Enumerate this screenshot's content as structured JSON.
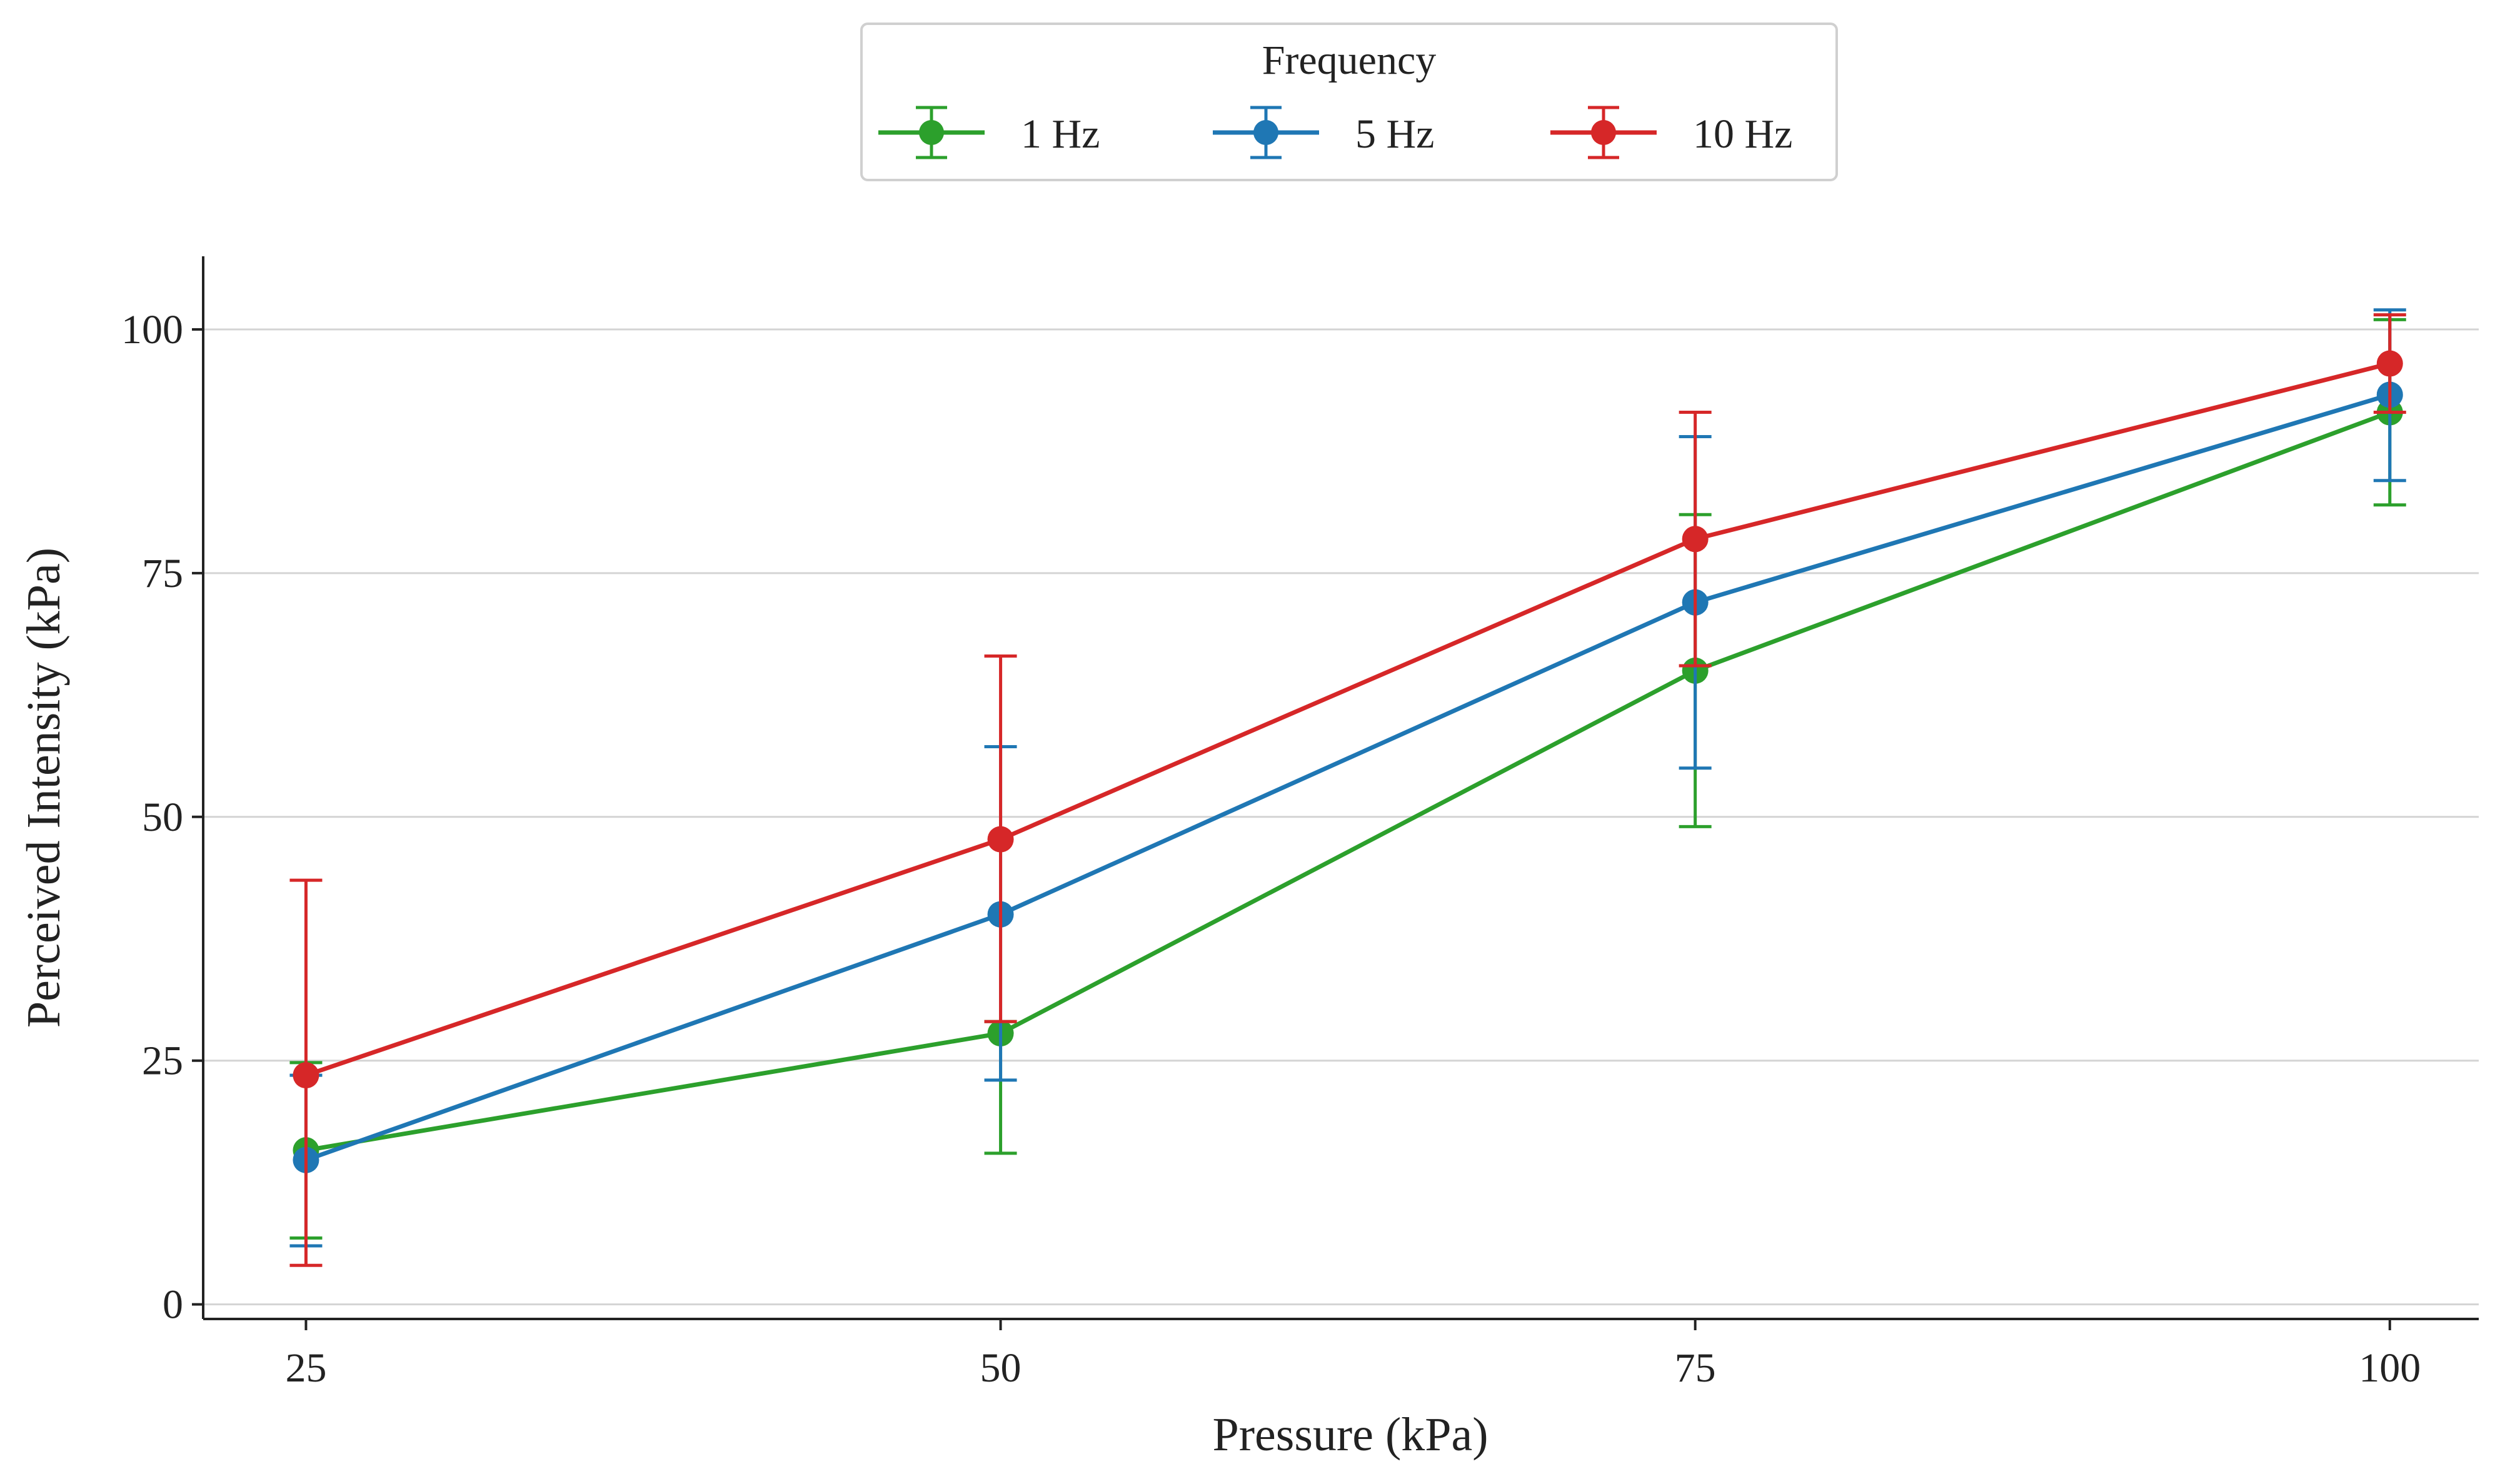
{
  "chart_data": {
    "type": "line",
    "title": "",
    "xlabel": "Pressure (kPa)",
    "ylabel": "Perceived Intensity (kPa)",
    "x": [
      25,
      50,
      75,
      100
    ],
    "x_tick_labels": [
      "25",
      "50",
      "75",
      "100"
    ],
    "y_ticks": [
      0,
      25,
      50,
      75,
      100
    ],
    "y_tick_labels": [
      "0",
      "25",
      "50",
      "75",
      "100"
    ],
    "xlim": [
      21.3,
      103.2
    ],
    "ylim": [
      -1.5,
      107.5
    ],
    "grid": "horizontal",
    "legend": {
      "title": "Frequency",
      "placement": "top-center"
    },
    "series": [
      {
        "name": "1 Hz",
        "color": "#2ca02c",
        "values": [
          15.8,
          27.8,
          65.0,
          91.5
        ],
        "error_low": [
          6.8,
          15.5,
          49.0,
          82.0
        ],
        "error_high": [
          24.8,
          29.0,
          81.0,
          101.0
        ]
      },
      {
        "name": "5 Hz",
        "color": "#1f77b4",
        "values": [
          14.8,
          40.0,
          72.0,
          93.3
        ],
        "error_low": [
          6.0,
          23.0,
          55.0,
          84.5
        ],
        "error_high": [
          23.5,
          57.2,
          89.0,
          102.0
        ]
      },
      {
        "name": "10 Hz",
        "color": "#d62728",
        "values": [
          23.5,
          47.7,
          78.5,
          96.5
        ],
        "error_low": [
          4.0,
          29.0,
          65.5,
          91.5
        ],
        "error_high": [
          43.5,
          66.5,
          91.5,
          101.5
        ]
      }
    ]
  }
}
